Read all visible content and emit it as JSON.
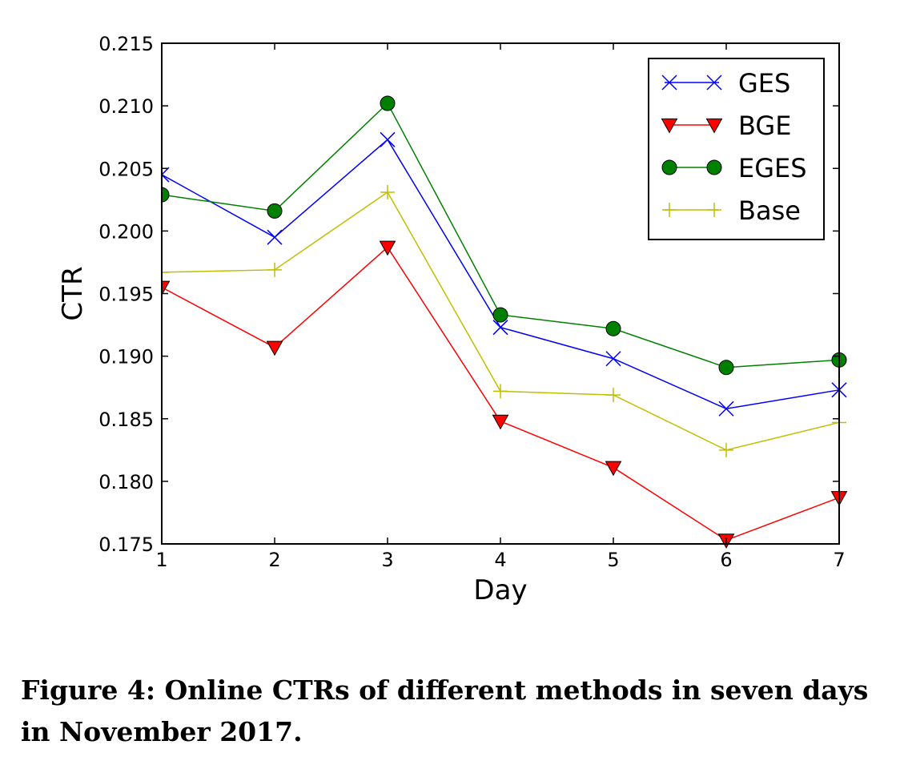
{
  "chart_data": {
    "type": "line",
    "title": "",
    "xlabel": "Day",
    "ylabel": "CTR",
    "x": [
      1,
      2,
      3,
      4,
      5,
      6,
      7
    ],
    "xlim": [
      1,
      7
    ],
    "ylim": [
      0.175,
      0.215
    ],
    "xticks": [
      "1",
      "2",
      "3",
      "4",
      "5",
      "6",
      "7"
    ],
    "yticks": [
      "0.175",
      "0.180",
      "0.185",
      "0.190",
      "0.195",
      "0.200",
      "0.205",
      "0.210",
      "0.215"
    ],
    "grid": false,
    "legend_position": "upper-right",
    "series": [
      {
        "name": "GES",
        "color": "#0000ff",
        "marker": "x",
        "values": [
          0.2045,
          0.1995,
          0.2073,
          0.1923,
          0.1898,
          0.1858,
          0.1873
        ]
      },
      {
        "name": "BGE",
        "color": "#ff0000",
        "marker": "triangle-down",
        "values": [
          0.1955,
          0.1907,
          0.1987,
          0.1848,
          0.1811,
          0.1753,
          0.1787
        ]
      },
      {
        "name": "EGES",
        "color": "#008000",
        "marker": "circle",
        "values": [
          0.2029,
          0.2016,
          0.2102,
          0.1933,
          0.1922,
          0.1891,
          0.1897
        ]
      },
      {
        "name": "Base",
        "color": "#bfbf00",
        "marker": "plus",
        "values": [
          0.1967,
          0.1969,
          0.2031,
          0.1872,
          0.1869,
          0.1825,
          0.1847
        ]
      }
    ]
  },
  "caption": "Figure 4: Online CTRs of different methods in seven days in November 2017."
}
